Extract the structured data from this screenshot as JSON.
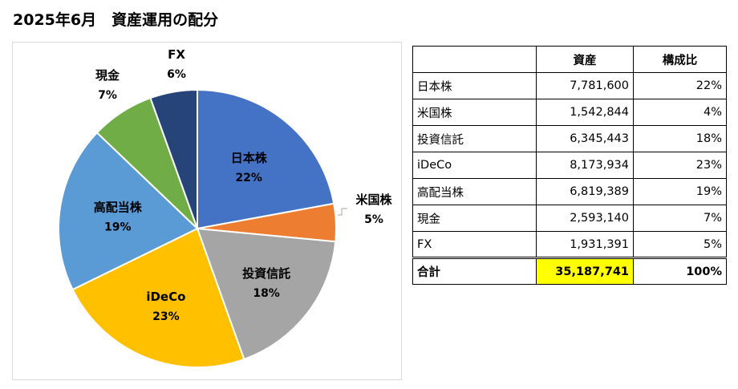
{
  "page": {
    "title": "2025年6月　資産運用の配分"
  },
  "table": {
    "headers": [
      "",
      "資産",
      "構成比"
    ],
    "rows": [
      [
        "日本株",
        "7,781,600",
        "22%"
      ],
      [
        "米国株",
        "1,542,844",
        "4%"
      ],
      [
        "投資信託",
        "6,345,443",
        "18%"
      ],
      [
        "iDeCo",
        "8,173,934",
        "23%"
      ],
      [
        "高配当株",
        "6,819,389",
        "19%"
      ],
      [
        "現金",
        "2,593,140",
        "7%"
      ],
      [
        "FX",
        "1,931,391",
        "5%"
      ]
    ],
    "total": [
      "合計",
      "35,187,741",
      "100%"
    ],
    "total_highlight_color": "#ffff00"
  },
  "chart_data": {
    "type": "pie",
    "title": "",
    "categories": [
      "日本株",
      "米国株",
      "投資信託",
      "iDeCo",
      "高配当株",
      "現金",
      "FX"
    ],
    "values": [
      7781600,
      1542844,
      6345443,
      8173934,
      6819389,
      2593140,
      1931391
    ],
    "labels_pct": [
      "22%",
      "5%",
      "18%",
      "23%",
      "19%",
      "7%",
      "6%"
    ],
    "colors": [
      "#4472c4",
      "#ed7d31",
      "#a5a5a5",
      "#ffc000",
      "#5b9bd5",
      "#70ad47",
      "#264478"
    ],
    "start_angle": "12 o'clock, clockwise",
    "legend": "none (category labels on slices)"
  }
}
